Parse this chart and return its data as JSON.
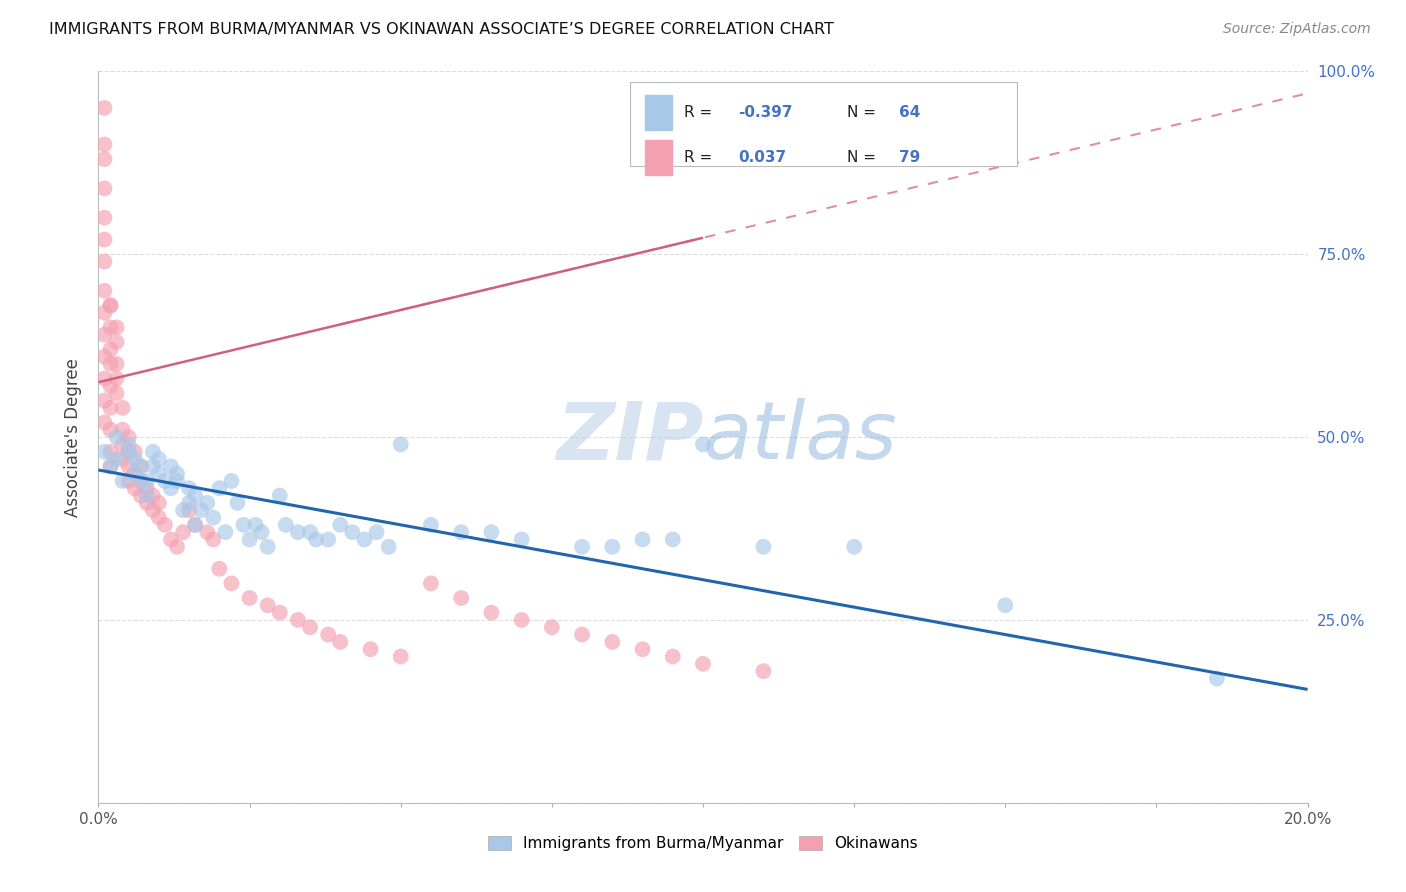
{
  "title": "IMMIGRANTS FROM BURMA/MYANMAR VS OKINAWAN ASSOCIATE’S DEGREE CORRELATION CHART",
  "source": "Source: ZipAtlas.com",
  "ylabel": "Associate's Degree",
  "xlim": [
    0.0,
    0.2
  ],
  "ylim": [
    0.0,
    1.0
  ],
  "blue_R": -0.397,
  "blue_N": 64,
  "pink_R": 0.037,
  "pink_N": 79,
  "blue_color": "#a8c8e8",
  "pink_color": "#f4a0b0",
  "blue_line_color": "#2166ac",
  "pink_line_color": "#d06080",
  "watermark_color": "#d0e4f4",
  "grid_color": "#dddddd",
  "right_axis_color": "#4472c4",
  "blue_scatter_x": [
    0.001,
    0.002,
    0.003,
    0.003,
    0.004,
    0.005,
    0.005,
    0.006,
    0.006,
    0.007,
    0.007,
    0.008,
    0.008,
    0.009,
    0.009,
    0.01,
    0.01,
    0.011,
    0.012,
    0.012,
    0.013,
    0.013,
    0.014,
    0.015,
    0.015,
    0.016,
    0.016,
    0.017,
    0.018,
    0.019,
    0.02,
    0.021,
    0.022,
    0.023,
    0.024,
    0.025,
    0.026,
    0.027,
    0.028,
    0.03,
    0.031,
    0.033,
    0.035,
    0.036,
    0.038,
    0.04,
    0.042,
    0.044,
    0.046,
    0.048,
    0.05,
    0.055,
    0.06,
    0.065,
    0.07,
    0.08,
    0.085,
    0.09,
    0.095,
    0.1,
    0.11,
    0.125,
    0.15,
    0.185
  ],
  "blue_scatter_y": [
    0.48,
    0.46,
    0.47,
    0.5,
    0.44,
    0.48,
    0.49,
    0.45,
    0.47,
    0.44,
    0.46,
    0.42,
    0.44,
    0.46,
    0.48,
    0.45,
    0.47,
    0.44,
    0.43,
    0.46,
    0.44,
    0.45,
    0.4,
    0.41,
    0.43,
    0.38,
    0.42,
    0.4,
    0.41,
    0.39,
    0.43,
    0.37,
    0.44,
    0.41,
    0.38,
    0.36,
    0.38,
    0.37,
    0.35,
    0.42,
    0.38,
    0.37,
    0.37,
    0.36,
    0.36,
    0.38,
    0.37,
    0.36,
    0.37,
    0.35,
    0.49,
    0.38,
    0.37,
    0.37,
    0.36,
    0.35,
    0.35,
    0.36,
    0.36,
    0.49,
    0.35,
    0.35,
    0.27,
    0.17
  ],
  "pink_scatter_x": [
    0.001,
    0.001,
    0.001,
    0.001,
    0.001,
    0.001,
    0.001,
    0.001,
    0.001,
    0.001,
    0.001,
    0.001,
    0.001,
    0.001,
    0.002,
    0.002,
    0.002,
    0.002,
    0.002,
    0.002,
    0.002,
    0.002,
    0.002,
    0.002,
    0.003,
    0.003,
    0.003,
    0.003,
    0.003,
    0.004,
    0.004,
    0.004,
    0.004,
    0.005,
    0.005,
    0.005,
    0.005,
    0.006,
    0.006,
    0.006,
    0.007,
    0.007,
    0.007,
    0.008,
    0.008,
    0.009,
    0.009,
    0.01,
    0.01,
    0.011,
    0.012,
    0.013,
    0.014,
    0.015,
    0.016,
    0.018,
    0.019,
    0.02,
    0.022,
    0.025,
    0.028,
    0.03,
    0.033,
    0.035,
    0.038,
    0.04,
    0.045,
    0.05,
    0.055,
    0.06,
    0.065,
    0.07,
    0.075,
    0.08,
    0.085,
    0.09,
    0.095,
    0.1,
    0.11
  ],
  "pink_scatter_y": [
    0.95,
    0.9,
    0.88,
    0.84,
    0.8,
    0.77,
    0.74,
    0.7,
    0.67,
    0.64,
    0.61,
    0.58,
    0.55,
    0.52,
    0.62,
    0.68,
    0.65,
    0.6,
    0.57,
    0.54,
    0.51,
    0.48,
    0.46,
    0.68,
    0.63,
    0.6,
    0.58,
    0.56,
    0.65,
    0.54,
    0.51,
    0.49,
    0.47,
    0.5,
    0.48,
    0.46,
    0.44,
    0.48,
    0.45,
    0.43,
    0.46,
    0.44,
    0.42,
    0.43,
    0.41,
    0.42,
    0.4,
    0.41,
    0.39,
    0.38,
    0.36,
    0.35,
    0.37,
    0.4,
    0.38,
    0.37,
    0.36,
    0.32,
    0.3,
    0.28,
    0.27,
    0.26,
    0.25,
    0.24,
    0.23,
    0.22,
    0.21,
    0.2,
    0.3,
    0.28,
    0.26,
    0.25,
    0.24,
    0.23,
    0.22,
    0.21,
    0.2,
    0.19,
    0.18
  ],
  "blue_line_x0": 0.0,
  "blue_line_y0": 0.455,
  "blue_line_x1": 0.2,
  "blue_line_y1": 0.155,
  "pink_line_x0": 0.0,
  "pink_line_y0": 0.575,
  "pink_line_x1": 0.2,
  "pink_line_y1": 0.97
}
